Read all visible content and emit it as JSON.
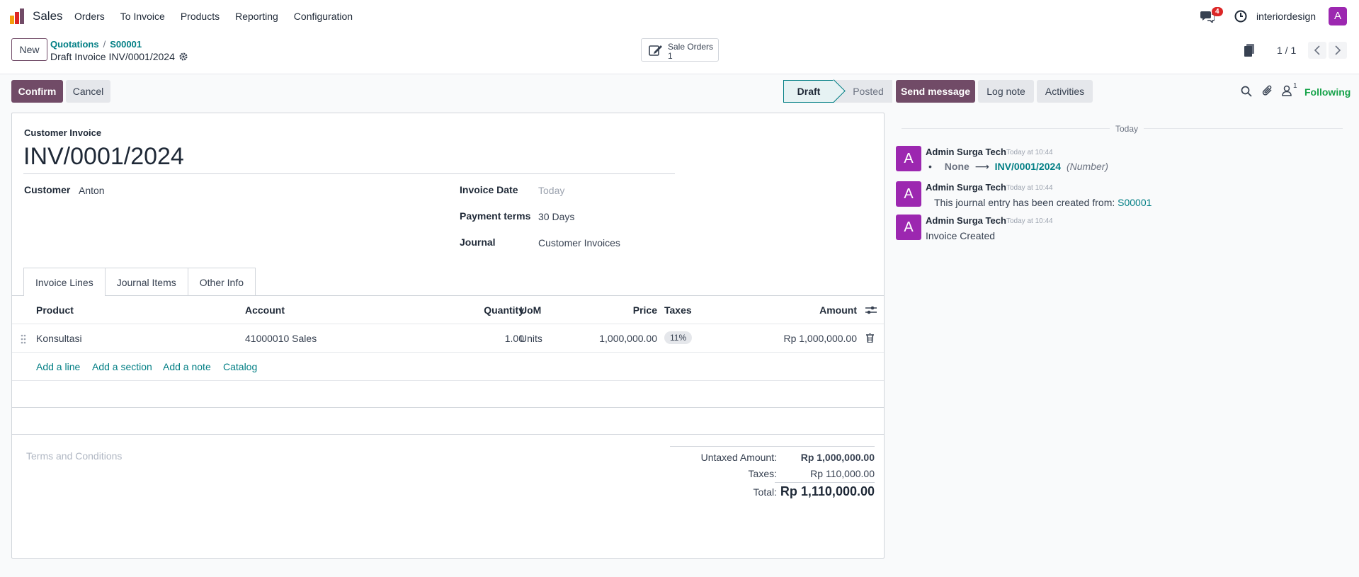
{
  "topbar": {
    "app_name": "Sales",
    "menu": [
      "Orders",
      "To Invoice",
      "Products",
      "Reporting",
      "Configuration"
    ],
    "notification_count": "4",
    "company": "interiordesign",
    "user_initial": "A"
  },
  "control": {
    "new_label": "New",
    "breadcrumb": [
      "Quotations",
      "S00001"
    ],
    "breadcrumb_sep": "/",
    "record_title": "Draft Invoice INV/0001/2024",
    "smart_button": {
      "label": "Sale Orders",
      "count": "1"
    },
    "pager": "1 / 1"
  },
  "actions": {
    "confirm": "Confirm",
    "cancel": "Cancel",
    "status_draft": "Draft",
    "status_posted": "Posted"
  },
  "form": {
    "type_label": "Customer Invoice",
    "number": "INV/0001/2024",
    "customer_label": "Customer",
    "customer_value": "Anton",
    "invoice_date_label": "Invoice Date",
    "invoice_date_value": "Today",
    "payment_terms_label": "Payment terms",
    "payment_terms_value": "30 Days",
    "journal_label": "Journal",
    "journal_value": "Customer Invoices",
    "tabs": [
      "Invoice Lines",
      "Journal Items",
      "Other Info"
    ]
  },
  "lines": {
    "headers": {
      "product": "Product",
      "account": "Account",
      "quantity": "Quantity",
      "uom": "UoM",
      "price": "Price",
      "taxes": "Taxes",
      "amount": "Amount"
    },
    "rows": [
      {
        "product": "Konsultasi",
        "account": "41000010 Sales",
        "quantity": "1.00",
        "uom": "Units",
        "price": "1,000,000.00",
        "tax": "11%",
        "amount": "Rp 1,000,000.00"
      }
    ],
    "add_line": "Add a line",
    "add_section": "Add a section",
    "add_note": "Add a note",
    "catalog": "Catalog"
  },
  "footer": {
    "terms_placeholder": "Terms and Conditions",
    "untaxed_label": "Untaxed Amount:",
    "untaxed_value": "Rp 1,000,000.00",
    "taxes_label": "Taxes:",
    "taxes_value": "Rp 110,000.00",
    "total_label": "Total:",
    "total_value": "Rp 1,110,000.00"
  },
  "chatter": {
    "send_message": "Send message",
    "log_note": "Log note",
    "activities": "Activities",
    "followers_count": "1",
    "following": "Following",
    "today": "Today",
    "messages": [
      {
        "initial": "A",
        "author": "Admin Surga Tech",
        "time": "Today at 10:44",
        "old": "None",
        "arrow": "⟶",
        "new": "INV/0001/2024",
        "field": "(Number)"
      },
      {
        "initial": "A",
        "author": "Admin Surga Tech",
        "time": "Today at 10:44",
        "text": "This journal entry has been created from:",
        "link": "S00001"
      },
      {
        "initial": "A",
        "author": "Admin Surga Tech",
        "time": "Today at 10:44",
        "text": "Invoice Created"
      }
    ]
  },
  "colors": {
    "primary": "#714b67",
    "link": "#017e84",
    "avatar": "#9c27b0",
    "following": "#16a34a",
    "badge": "#dc2626"
  }
}
